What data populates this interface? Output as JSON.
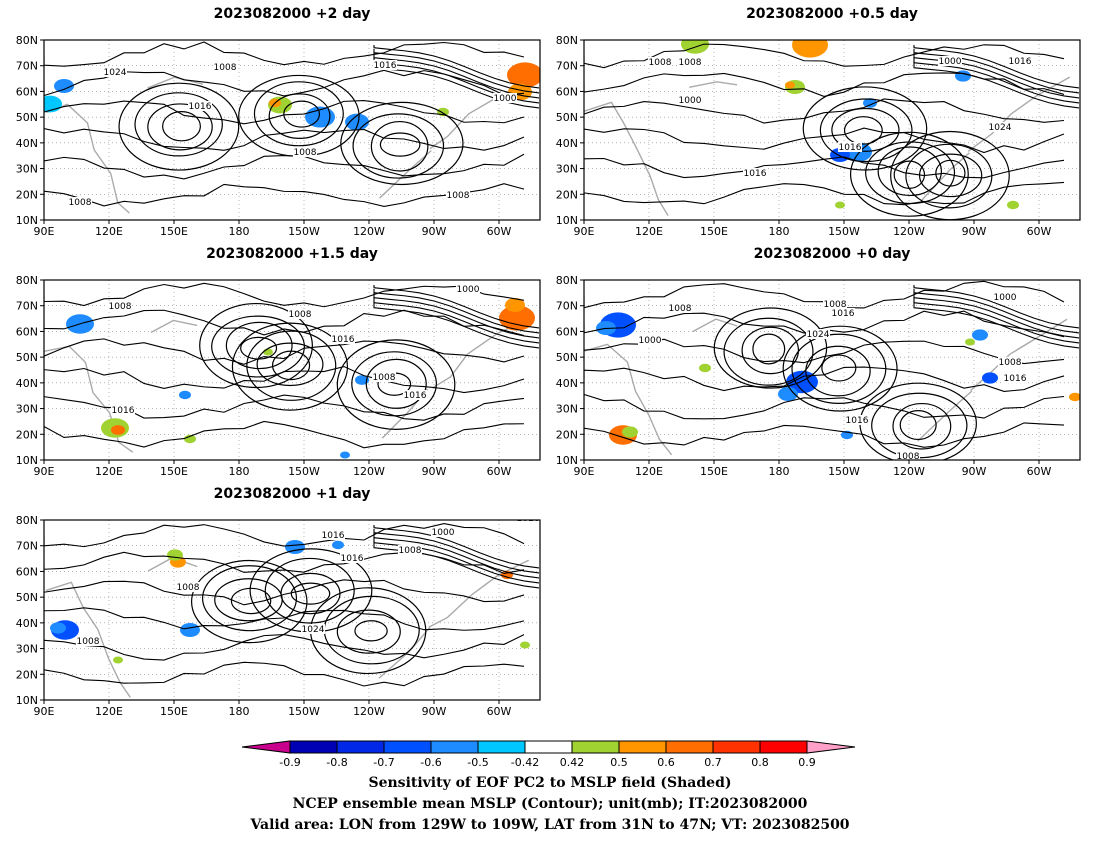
{
  "panels": [
    {
      "title": "2023082000 +2 day",
      "lat_labels": [
        "80N",
        "70N",
        "60N",
        "50N",
        "40N",
        "30N",
        "20N",
        "10N"
      ],
      "lon_labels": [
        "90E",
        "120E",
        "150E",
        "180",
        "150W",
        "120W",
        "90W",
        "60W"
      ],
      "contour_labels": [
        "1008",
        "1016",
        "1008",
        "1024",
        "1016",
        "1000",
        "1008",
        "1008"
      ]
    },
    {
      "title": "2023082000 +0.5 day",
      "lat_labels": [
        "80N",
        "70N",
        "60N",
        "50N",
        "40N",
        "30N",
        "20N",
        "10N"
      ],
      "lon_labels": [
        "90E",
        "120E",
        "150E",
        "180",
        "150W",
        "120W",
        "90W",
        "60W"
      ],
      "contour_labels": [
        "1008",
        "1000",
        "1008",
        "1000",
        "1016",
        "1024",
        "1016",
        "1016"
      ]
    },
    {
      "title": "2023082000 +1.5 day",
      "lat_labels": [
        "80N",
        "70N",
        "60N",
        "50N",
        "40N",
        "30N",
        "20N",
        "10N"
      ],
      "lon_labels": [
        "90E",
        "120E",
        "150E",
        "180",
        "150W",
        "120W",
        "90W",
        "60W"
      ],
      "contour_labels": [
        "1008",
        "1008",
        "1016",
        "1000",
        "1016",
        "1016",
        "1008"
      ]
    },
    {
      "title": "2023082000 +0 day",
      "lat_labels": [
        "80N",
        "70N",
        "60N",
        "50N",
        "40N",
        "30N",
        "20N",
        "10N"
      ],
      "lon_labels": [
        "90E",
        "120E",
        "150E",
        "180",
        "150W",
        "120W",
        "90W",
        "60W"
      ],
      "contour_labels": [
        "1008",
        "1000",
        "1008",
        "1016",
        "1024",
        "1000",
        "1008",
        "1016",
        "1016",
        "1008"
      ]
    },
    {
      "title": "2023082000 +1 day",
      "lat_labels": [
        "80N",
        "70N",
        "60N",
        "50N",
        "40N",
        "30N",
        "20N",
        "10N"
      ],
      "lon_labels": [
        "90E",
        "120E",
        "150E",
        "180",
        "150W",
        "120W",
        "90W",
        "60W"
      ],
      "contour_labels": [
        "1016",
        "1000",
        "1008",
        "1016",
        "1008",
        "1024",
        "1008",
        "1016"
      ]
    }
  ],
  "colorbar": {
    "labels": [
      "-0.9",
      "-0.8",
      "-0.7",
      "-0.6",
      "-0.5",
      "-0.42",
      "0.42",
      "0.5",
      "0.6",
      "0.7",
      "0.8",
      "0.9"
    ],
    "colors": [
      "#c8008c",
      "#0000b4",
      "#0028e6",
      "#0050ff",
      "#1e8cff",
      "#00c8ff",
      "#ffffff",
      "#a0d232",
      "#ff9600",
      "#ff6e00",
      "#ff3200",
      "#ff0000",
      "#ffa0c8"
    ]
  },
  "caption": {
    "line1": "Sensitivity of EOF PC2 to MSLP field (Shaded)",
    "line2": "NCEP ensemble mean MSLP (Contour); unit(mb); IT:2023082000",
    "line3": "Valid area: LON from 129W to 109W, LAT from 31N to 47N; VT: 2023082500"
  }
}
